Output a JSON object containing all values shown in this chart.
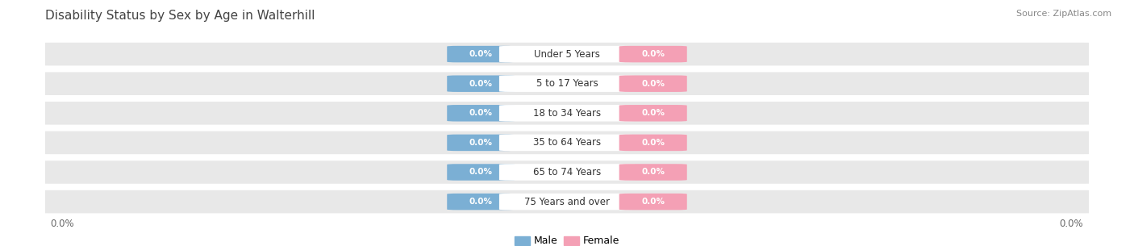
{
  "title": "Disability Status by Sex by Age in Walterhill",
  "source": "Source: ZipAtlas.com",
  "categories": [
    "Under 5 Years",
    "5 to 17 Years",
    "18 to 34 Years",
    "35 to 64 Years",
    "65 to 74 Years",
    "75 Years and over"
  ],
  "male_values": [
    0.0,
    0.0,
    0.0,
    0.0,
    0.0,
    0.0
  ],
  "female_values": [
    0.0,
    0.0,
    0.0,
    0.0,
    0.0,
    0.0
  ],
  "male_color": "#7bafd4",
  "female_color": "#f4a0b5",
  "male_label": "Male",
  "female_label": "Female",
  "row_bg_color": "#e8e8e8",
  "row_bg_color2": "#f2f2f2",
  "background_color": "#ffffff",
  "pill_label_color": "#ffffff",
  "cat_label_color": "#333333",
  "xlabel_color": "#666666",
  "title_color": "#444444",
  "source_color": "#888888",
  "title_fontsize": 11,
  "source_fontsize": 8,
  "label_fontsize": 7.5,
  "cat_fontsize": 8.5,
  "axis_fontsize": 8.5
}
